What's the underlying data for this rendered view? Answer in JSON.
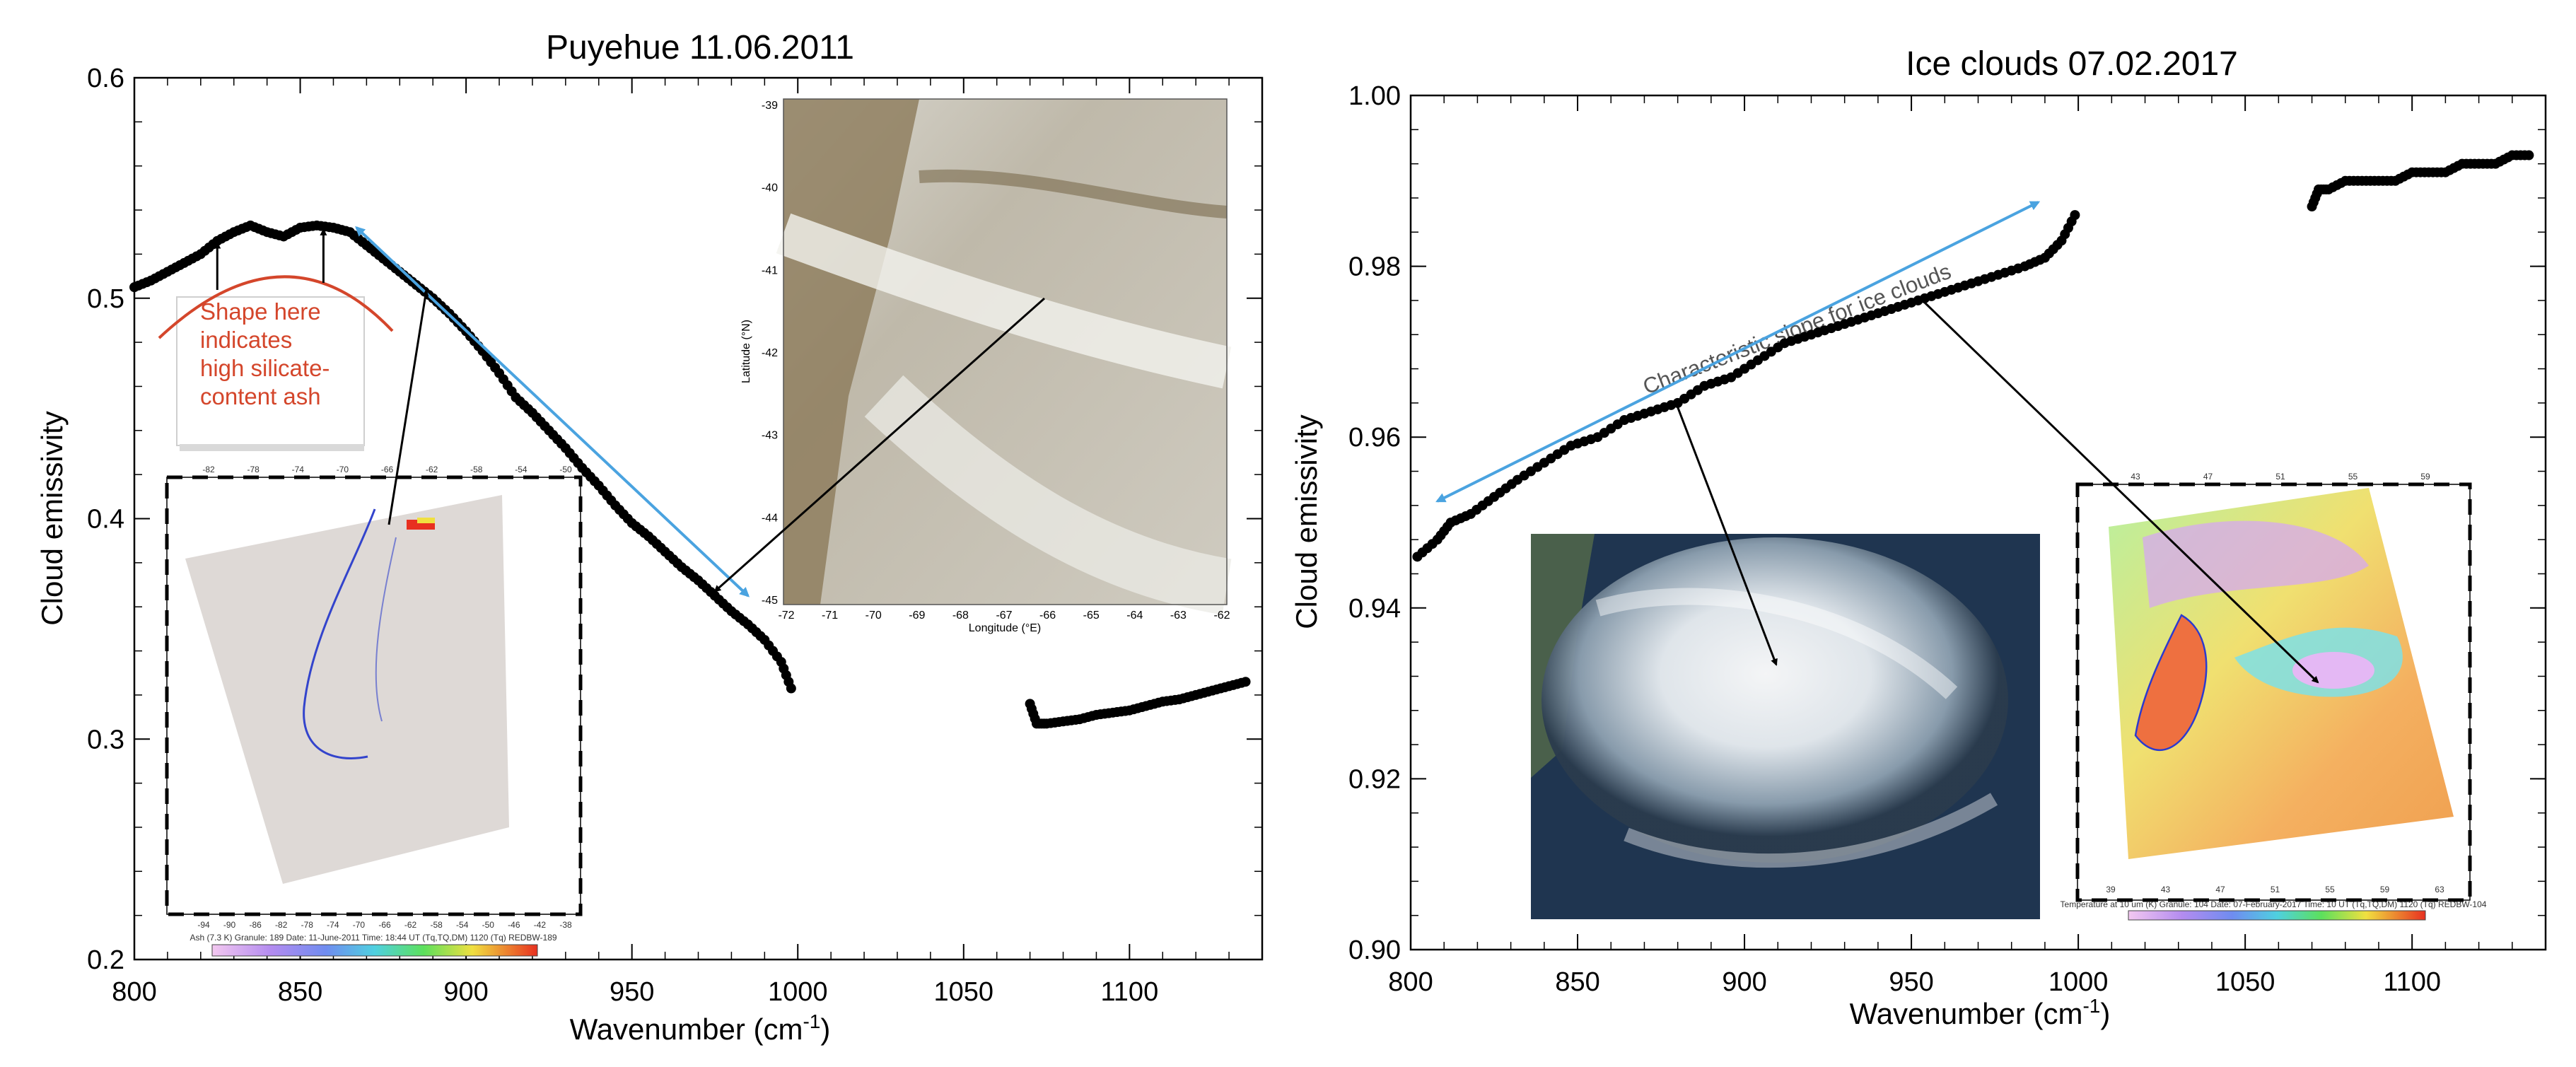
{
  "chart_data": [
    {
      "type": "scatter",
      "title": "Puyehue  11.06.2011",
      "xlabel": "Wavenumber (cm",
      "xlabel_sup": "-1",
      "xlabel_end": ")",
      "ylabel": "Cloud emissivity",
      "xlim": [
        800,
        1140
      ],
      "ylim": [
        0.2,
        0.6
      ],
      "xticks": [
        800,
        850,
        900,
        950,
        1000,
        1050,
        1100
      ],
      "yticks": [
        0.2,
        0.3,
        0.4,
        0.5,
        0.6
      ],
      "ytick_labels": [
        "0.2",
        "0.3",
        "0.4",
        "0.5",
        "0.6"
      ],
      "grid": false,
      "segments": [
        {
          "x": [
            800,
            805,
            810,
            815,
            820,
            825,
            830,
            835,
            840,
            845,
            850,
            855,
            860,
            865,
            870,
            875,
            880,
            885,
            890,
            895,
            900,
            905,
            910,
            915,
            920,
            925,
            930,
            935,
            940,
            945,
            950,
            955,
            960,
            965,
            970,
            975,
            980,
            985,
            990,
            995,
            998
          ],
          "y": [
            0.505,
            0.508,
            0.512,
            0.516,
            0.52,
            0.526,
            0.53,
            0.533,
            0.53,
            0.528,
            0.532,
            0.533,
            0.532,
            0.53,
            0.524,
            0.518,
            0.512,
            0.506,
            0.5,
            0.493,
            0.485,
            0.476,
            0.466,
            0.455,
            0.448,
            0.44,
            0.432,
            0.423,
            0.415,
            0.406,
            0.398,
            0.392,
            0.385,
            0.378,
            0.372,
            0.365,
            0.358,
            0.352,
            0.345,
            0.335,
            0.323
          ]
        },
        {
          "x": [
            1070,
            1072,
            1075,
            1080,
            1085,
            1090,
            1095,
            1100,
            1105,
            1110,
            1115,
            1120,
            1125,
            1130,
            1135
          ],
          "y": [
            0.316,
            0.307,
            0.307,
            0.308,
            0.309,
            0.311,
            0.312,
            0.313,
            0.315,
            0.317,
            0.318,
            0.32,
            0.322,
            0.324,
            0.326
          ]
        }
      ],
      "annotation": {
        "lines": [
          "Shape here",
          "indicates",
          "high silicate-",
          "content ash"
        ],
        "color": "#d4462b"
      },
      "arrow_color": "#4aa3e0",
      "inset_satellite": {
        "ylabel": "Latitude (°N)",
        "xlabel": "Longitude (°E)",
        "yticks": [
          "-39",
          "-40",
          "-41",
          "-42",
          "-43",
          "-44",
          "-45"
        ],
        "xticks": [
          "-72",
          "-71",
          "-70",
          "-69",
          "-68",
          "-67",
          "-66",
          "-65",
          "-64",
          "-63",
          "-62"
        ]
      },
      "inset_map": {
        "top_ticks": [
          "-82",
          "-78",
          "-74",
          "-70",
          "-66",
          "-62",
          "-58",
          "-54",
          "-50"
        ],
        "bottom_ticks": [
          "-94",
          "-90",
          "-86",
          "-82",
          "-78",
          "-74",
          "-70",
          "-66",
          "-62",
          "-58",
          "-54",
          "-50",
          "-46",
          "-42",
          "-38"
        ],
        "footer": "Ash (7.3 K)  Granule: 189  Date: 11-June-2011  Time: 18:44 UT (Tq,TQ,DM) 1120 (Tq) REDBW-189"
      }
    },
    {
      "type": "scatter",
      "title": "Ice clouds  07.02.2017",
      "xlabel": "Wavenumber (cm",
      "xlabel_sup": "-1",
      "xlabel_end": ")",
      "ylabel": "Cloud emissivity",
      "xlim": [
        800,
        1140
      ],
      "ylim": [
        0.9,
        1.0
      ],
      "xticks": [
        800,
        850,
        900,
        950,
        1000,
        1050,
        1100
      ],
      "yticks": [
        0.9,
        0.92,
        0.94,
        0.96,
        0.98,
        1.0
      ],
      "ytick_labels": [
        "0.90",
        "0.92",
        "0.94",
        "0.96",
        "0.98",
        "1.00"
      ],
      "grid": false,
      "segments": [
        {
          "x": [
            802,
            808,
            812,
            818,
            825,
            832,
            840,
            848,
            856,
            864,
            872,
            880,
            888,
            896,
            904,
            912,
            920,
            928,
            936,
            944,
            952,
            960,
            968,
            976,
            984,
            990,
            995,
            999
          ],
          "y": [
            0.946,
            0.948,
            0.95,
            0.951,
            0.953,
            0.955,
            0.957,
            0.959,
            0.96,
            0.962,
            0.963,
            0.964,
            0.966,
            0.967,
            0.969,
            0.971,
            0.972,
            0.973,
            0.974,
            0.975,
            0.976,
            0.977,
            0.978,
            0.979,
            0.98,
            0.981,
            0.983,
            0.986
          ]
        },
        {
          "x": [
            1070,
            1072,
            1075,
            1080,
            1085,
            1090,
            1095,
            1100,
            1105,
            1110,
            1115,
            1120,
            1125,
            1130,
            1135
          ],
          "y": [
            0.987,
            0.989,
            0.989,
            0.99,
            0.99,
            0.99,
            0.99,
            0.991,
            0.991,
            0.991,
            0.992,
            0.992,
            0.992,
            0.993,
            0.993
          ]
        }
      ],
      "annotation": {
        "lines": [
          "Characteristic slope for ice clouds"
        ],
        "color": "#555555"
      },
      "arrow_color": "#4aa3e0",
      "inset_temp": {
        "top_ticks": [
          "43",
          "47",
          "51",
          "55",
          "59"
        ],
        "bottom_ticks": [
          "39",
          "43",
          "47",
          "51",
          "55",
          "59",
          "63"
        ],
        "footer": "Temperature at 10 um (K)  Granule: 104  Date: 07-February-2017  Time: 10 UT (Tq,TQ,DM) 1120 (Tq) REDBW-104"
      }
    }
  ]
}
